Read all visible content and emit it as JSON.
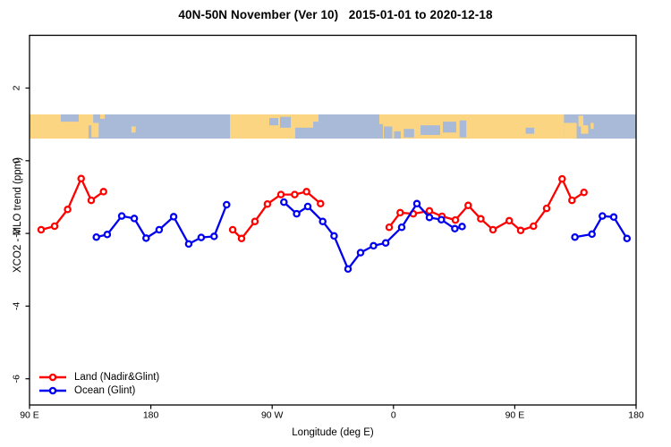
{
  "title": "40N-50N November (Ver 10)   2015-01-01 to 2020-12-18",
  "axes": {
    "x": {
      "label": "Longitude (deg E)",
      "ticks": [
        {
          "lon": 90,
          "label": "90 E"
        },
        {
          "lon": 180,
          "label": "180"
        },
        {
          "lon": 270,
          "label": "90 W"
        },
        {
          "lon": 360,
          "label": "0"
        },
        {
          "lon": 450,
          "label": "90 E"
        },
        {
          "lon": 540,
          "label": "180"
        }
      ]
    },
    "y": {
      "label": "XCO2 - MLO trend (ppm)",
      "ticks": [
        {
          "value": 2,
          "label": "2"
        },
        {
          "value": 0,
          "label": "0"
        },
        {
          "value": -2,
          "label": "-2"
        },
        {
          "value": -4,
          "label": "-4"
        },
        {
          "value": -6,
          "label": "-6"
        }
      ]
    }
  },
  "legend": {
    "items": [
      {
        "label": "Land (Nadir&Glint)",
        "color": "#FF0000"
      },
      {
        "label": "Ocean (Glint)",
        "color": "#0000EE"
      }
    ]
  },
  "chart_data": {
    "type": "line",
    "title": "40N-50N November (Ver 10)   2015-01-01 to 2020-12-18",
    "xlabel": "Longitude (deg E)",
    "ylabel": "XCO2 - MLO trend (ppm)",
    "x_axis_note": "longitude axis spans 90E -> 180 -> 90W -> 0 -> 90E -> 180 (450 deg, values in axis degrees 90..540)",
    "xlim_axis_deg": [
      90,
      540
    ],
    "ylim": [
      -6.9,
      2.9
    ],
    "grid": false,
    "legend_position": "bottom-left",
    "map_strip": {
      "description": "40N-50N land/ocean world-map band drawn across the plot near y=+1 ppm",
      "y_range_ppm": [
        0.6,
        1.25
      ],
      "land_color": "#FBD581",
      "ocean_color": "#A9BAD8",
      "base": "ocean",
      "land_rects": [
        [
          0.0,
          0.0973,
          0,
          1
        ],
        [
          0.0973,
          0.105,
          0,
          0.45
        ],
        [
          0.102,
          0.114,
          0.35,
          0.95
        ],
        [
          0.1165,
          0.124,
          0,
          0.18
        ],
        [
          0.168,
          0.175,
          0.5,
          0.75
        ],
        [
          0.3304,
          0.438,
          0,
          1
        ],
        [
          0.438,
          0.4676,
          0,
          0.55
        ],
        [
          0.4676,
          0.4764,
          0,
          0.3
        ],
        [
          0.5767,
          0.5826,
          0,
          0.4
        ],
        [
          0.5826,
          0.881,
          0,
          1
        ],
        [
          0.881,
          0.902,
          0.35,
          1
        ],
        [
          0.905,
          0.913,
          0.05,
          0.5
        ],
        [
          0.909,
          0.921,
          0.45,
          0.8
        ],
        [
          0.925,
          0.93,
          0.35,
          0.6
        ]
      ],
      "ocean_rects": [
        [
          0.0516,
          0.0811,
          0,
          0.3
        ],
        [
          0.3953,
          0.41,
          0.15,
          0.45
        ],
        [
          0.413,
          0.4307,
          0.1,
          0.55
        ],
        [
          0.584,
          0.598,
          0.5,
          1
        ],
        [
          0.601,
          0.612,
          0.7,
          1
        ],
        [
          0.617,
          0.634,
          0.6,
          0.95
        ],
        [
          0.6446,
          0.677,
          0.45,
          0.85
        ],
        [
          0.6814,
          0.7035,
          0.3,
          0.75
        ],
        [
          0.709,
          0.72,
          0.25,
          0.95
        ],
        [
          0.818,
          0.832,
          0.55,
          0.8
        ]
      ]
    },
    "series": [
      {
        "name": "Land (Nadir&Glint)",
        "color": "#FF0000",
        "marker": "open-circle",
        "segments": [
          [
            [
              98.6,
              -1.9
            ],
            [
              108.6,
              -1.8
            ],
            [
              118.3,
              -1.34
            ],
            [
              128.3,
              -0.49
            ],
            [
              135.8,
              -1.09
            ],
            [
              144.9,
              -0.85
            ]
          ],
          [
            [
              240.7,
              -1.9
            ],
            [
              247.3,
              -2.14
            ],
            [
              257.2,
              -1.67
            ],
            [
              266.5,
              -1.19
            ],
            [
              276.5,
              -0.93
            ],
            [
              286.7,
              -0.93
            ],
            [
              295.5,
              -0.85
            ],
            [
              305.9,
              -1.18
            ]
          ],
          [
            [
              356.8,
              -1.83
            ],
            [
              365.0,
              -1.43
            ],
            [
              374.7,
              -1.46
            ],
            [
              386.7,
              -1.38
            ],
            [
              396.0,
              -1.53
            ],
            [
              405.9,
              -1.63
            ],
            [
              415.4,
              -1.23
            ],
            [
              424.8,
              -1.6
            ],
            [
              433.8,
              -1.9
            ],
            [
              445.9,
              -1.65
            ],
            [
              454.4,
              -1.92
            ],
            [
              463.9,
              -1.8
            ],
            [
              473.6,
              -1.31
            ],
            [
              485.1,
              -0.5
            ],
            [
              492.4,
              -1.09
            ],
            [
              501.3,
              -0.87
            ]
          ]
        ]
      },
      {
        "name": "Ocean (Glint)",
        "color": "#0000EE",
        "marker": "open-circle",
        "segments": [
          [
            [
              139.6,
              -2.1
            ],
            [
              147.7,
              -2.03
            ],
            [
              158.4,
              -1.52
            ],
            [
              167.7,
              -1.59
            ],
            [
              176.5,
              -2.13
            ],
            [
              186.2,
              -1.9
            ],
            [
              196.9,
              -1.54
            ],
            [
              208.1,
              -2.29
            ],
            [
              217.4,
              -2.11
            ],
            [
              226.9,
              -2.08
            ],
            [
              236.2,
              -1.21
            ]
          ],
          [
            [
              278.7,
              -1.14
            ],
            [
              288.2,
              -1.46
            ],
            [
              296.4,
              -1.26
            ],
            [
              307.5,
              -1.67
            ],
            [
              315.9,
              -2.07
            ],
            [
              326.3,
              -2.98
            ],
            [
              335.6,
              -2.53
            ],
            [
              345.2,
              -2.34
            ],
            [
              354.2,
              -2.26
            ],
            [
              366.1,
              -1.83
            ],
            [
              377.4,
              -1.18
            ],
            [
              386.7,
              -1.56
            ],
            [
              395.5,
              -1.62
            ],
            [
              405.5,
              -1.87
            ],
            [
              410.9,
              -1.81
            ]
          ],
          [
            [
              494.6,
              -2.1
            ],
            [
              507.3,
              -2.02
            ],
            [
              515.0,
              -1.52
            ],
            [
              523.4,
              -1.55
            ],
            [
              533.2,
              -2.14
            ]
          ]
        ]
      }
    ]
  }
}
